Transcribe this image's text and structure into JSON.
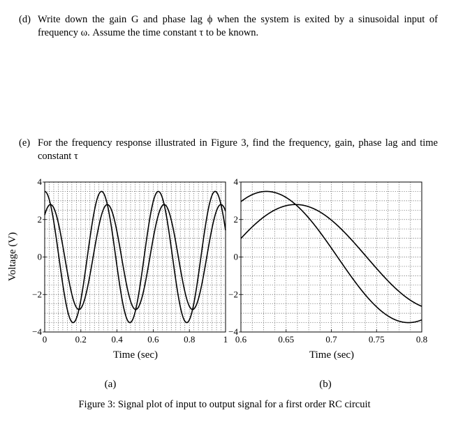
{
  "questions": [
    {
      "label": "(d)",
      "text": "Write down the gain G and phase lag ϕ when the system is exited by a sinusoidal input of frequency ω. Assume the time constant τ to be known."
    },
    {
      "label": "(e)",
      "text": "For the frequency response illustrated in Figure 3, find the frequency, gain, phase lag and time constant τ"
    }
  ],
  "figure_caption": "Figure 3: Signal plot of input to output signal for a first order RC circuit",
  "chart_data": [
    {
      "type": "line",
      "subcaption": "(a)",
      "xlabel": "Time (sec)",
      "ylabel": "Voltage (V)",
      "xlim": [
        0,
        1
      ],
      "ylim": [
        -4,
        4
      ],
      "xticks": [
        "0",
        "0.2",
        "0.4",
        "0.6",
        "0.8",
        "1"
      ],
      "yticks": [
        "4",
        "2",
        "0",
        "−2",
        "−4"
      ],
      "grid": true,
      "series": [
        {
          "function": "3.5*cos(20t)",
          "amplitude": 3.5,
          "omega": 20,
          "phase": 0
        },
        {
          "function": "2.8*cos(20t-0.6435)",
          "amplitude": 2.8,
          "omega": 20,
          "phase": 0.6435
        }
      ]
    },
    {
      "type": "line",
      "subcaption": "(b)",
      "xlabel": "Time (sec)",
      "ylabel": "",
      "xlim": [
        0.6,
        0.8
      ],
      "ylim": [
        -4,
        4
      ],
      "xticks": [
        "0.6",
        "0.65",
        "0.7",
        "0.75",
        "0.8"
      ],
      "yticks": [
        "4",
        "2",
        "0",
        "−2",
        "−4"
      ],
      "grid": true,
      "series": [
        {
          "function": "3.5*cos(20t)",
          "amplitude": 3.5,
          "omega": 20,
          "phase": 0
        },
        {
          "function": "2.8*cos(20t-0.6435)",
          "amplitude": 2.8,
          "omega": 20,
          "phase": 0.6435
        }
      ]
    }
  ]
}
